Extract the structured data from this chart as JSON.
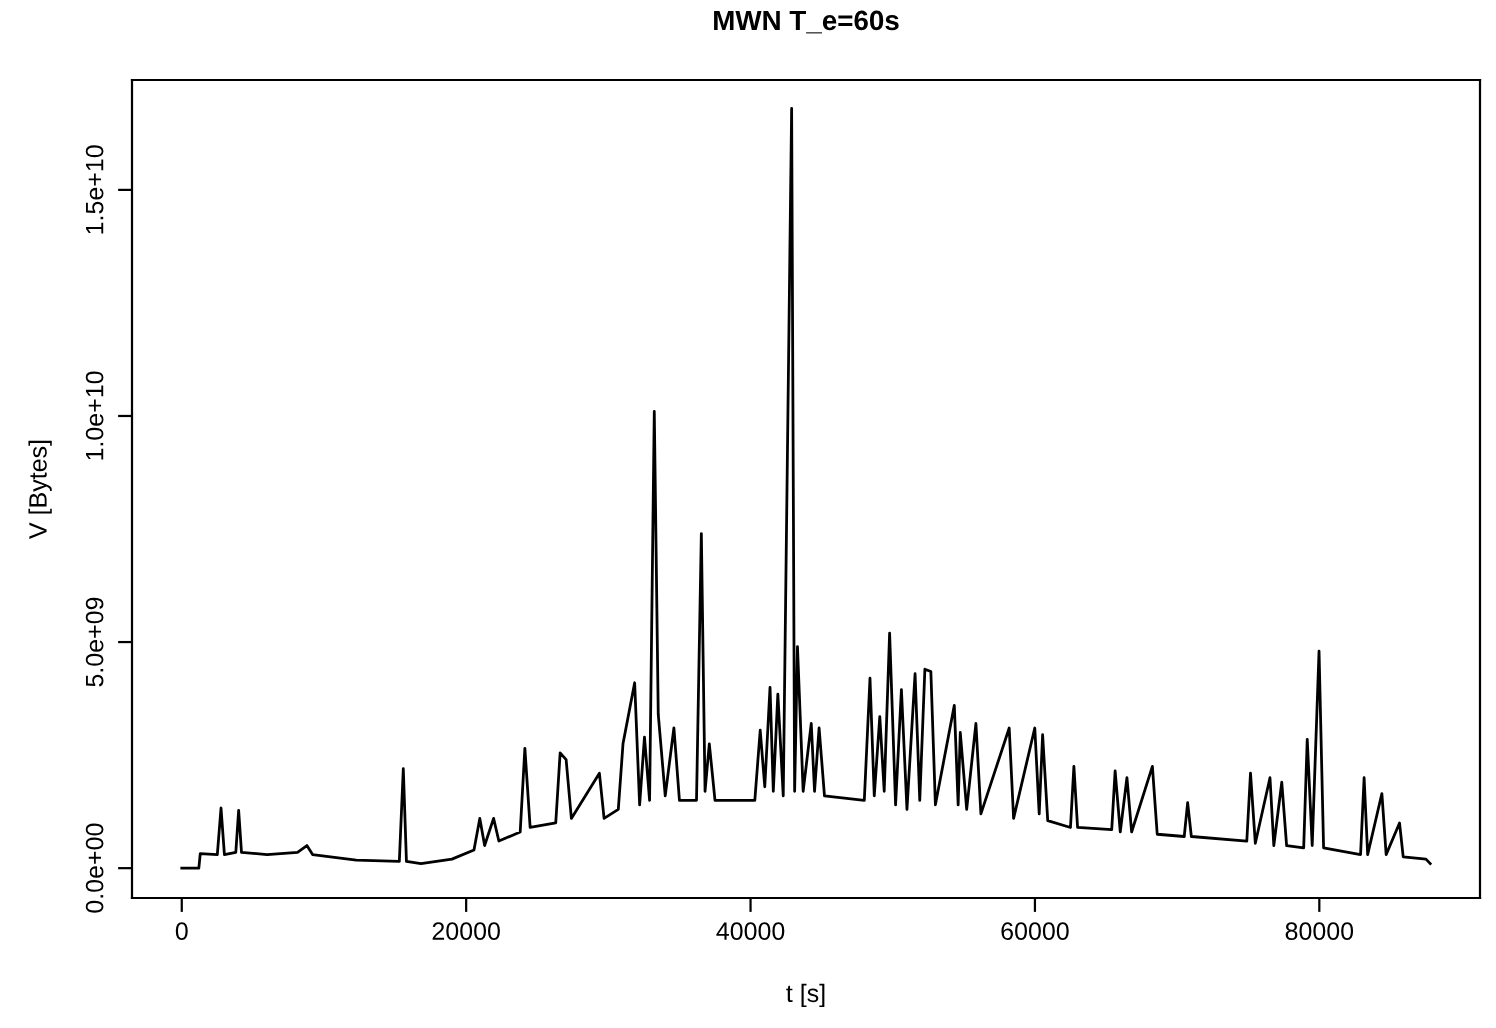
{
  "chart_data": {
    "type": "line",
    "title": "MWN T_e=60s",
    "xlabel": "t [s]",
    "ylabel": "V [Bytes]",
    "xlim": [
      -3500,
      91300
    ],
    "xticks": [
      0,
      20000,
      40000,
      60000,
      80000
    ],
    "ylim": [
      -660000000.0,
      17430000000.0
    ],
    "yticks": [
      {
        "value": 0,
        "label": "0.0e+00"
      },
      {
        "value": 5000000000.0,
        "label": "5.0e+09"
      },
      {
        "value": 10000000000.0,
        "label": "1.0e+10"
      },
      {
        "value": 15000000000.0,
        "label": "1.5e+10"
      }
    ],
    "grid": false,
    "legend": false,
    "marker": "none",
    "line_style": "solid",
    "series": [
      {
        "color": "#000000",
        "x": [
          0,
          1200,
          1300,
          2500,
          2760,
          3000,
          3800,
          4000,
          4200,
          6000,
          8140,
          8800,
          9200,
          12270,
          15300,
          15580,
          15800,
          16820,
          19000,
          20550,
          20960,
          21300,
          21930,
          22300,
          23800,
          24130,
          24500,
          26300,
          26610,
          27030,
          27400,
          29370,
          29700,
          30700,
          31030,
          31850,
          32200,
          32540,
          32900,
          33230,
          33510,
          34000,
          34610,
          35000,
          36200,
          36540,
          36800,
          37100,
          37500,
          40300,
          40680,
          41000,
          41370,
          41600,
          41920,
          42300,
          42890,
          43100,
          43300,
          43700,
          44270,
          44500,
          44820,
          45200,
          48000,
          48400,
          48700,
          49090,
          49400,
          49780,
          50200,
          50610,
          51000,
          51570,
          51900,
          52260,
          52680,
          53000,
          54330,
          54600,
          54750,
          55200,
          55850,
          56200,
          58190,
          58500,
          59990,
          60300,
          60540,
          60900,
          62500,
          62740,
          63000,
          65400,
          65640,
          66000,
          66470,
          66800,
          68260,
          68600,
          70500,
          70740,
          71000,
          74900,
          75160,
          75500,
          76530,
          76800,
          77360,
          77700,
          78900,
          79150,
          79500,
          79980,
          80300,
          82900,
          83150,
          83400,
          84400,
          84700,
          85640,
          85900,
          87500,
          87800
        ],
        "values": [
          0,
          0,
          320000000.0,
          300000000.0,
          1330000000.0,
          300000000.0,
          350000000.0,
          1280000000.0,
          350000000.0,
          300000000.0,
          350000000.0,
          500000000.0,
          300000000.0,
          180000000.0,
          150000000.0,
          2200000000.0,
          150000000.0,
          100000000.0,
          200000000.0,
          400000000.0,
          1100000000.0,
          500000000.0,
          1100000000.0,
          600000000.0,
          800000000.0,
          2650000000.0,
          900000000.0,
          1000000000.0,
          2550000000.0,
          2400000000.0,
          1100000000.0,
          2100000000.0,
          1100000000.0,
          1300000000.0,
          2750000000.0,
          4100000000.0,
          1400000000.0,
          2900000000.0,
          1500000000.0,
          10100000000.0,
          3400000000.0,
          1600000000.0,
          3100000000.0,
          1500000000.0,
          1500000000.0,
          7400000000.0,
          1700000000.0,
          2750000000.0,
          1500000000.0,
          1500000000.0,
          3050000000.0,
          1800000000.0,
          4000000000.0,
          1700000000.0,
          3850000000.0,
          1600000000.0,
          16800000000.0,
          1700000000.0,
          4900000000.0,
          1700000000.0,
          3200000000.0,
          1700000000.0,
          3100000000.0,
          1600000000.0,
          1500000000.0,
          4200000000.0,
          1600000000.0,
          3350000000.0,
          1700000000.0,
          5200000000.0,
          1400000000.0,
          3950000000.0,
          1300000000.0,
          4300000000.0,
          1500000000.0,
          4400000000.0,
          4350000000.0,
          1400000000.0,
          3600000000.0,
          1400000000.0,
          3000000000.0,
          1300000000.0,
          3200000000.0,
          1200000000.0,
          3100000000.0,
          1100000000.0,
          3100000000.0,
          1200000000.0,
          2950000000.0,
          1050000000.0,
          900000000.0,
          2250000000.0,
          900000000.0,
          850000000.0,
          2150000000.0,
          800000000.0,
          2000000000.0,
          800000000.0,
          2250000000.0,
          750000000.0,
          700000000.0,
          1450000000.0,
          700000000.0,
          600000000.0,
          2100000000.0,
          550000000.0,
          2000000000.0,
          500000000.0,
          1900000000.0,
          500000000.0,
          450000000.0,
          2850000000.0,
          500000000.0,
          4800000000.0,
          450000000.0,
          300000000.0,
          2000000000.0,
          300000000.0,
          1650000000.0,
          300000000.0,
          1000000000.0,
          250000000.0,
          200000000.0,
          100000000.0
        ]
      }
    ]
  }
}
